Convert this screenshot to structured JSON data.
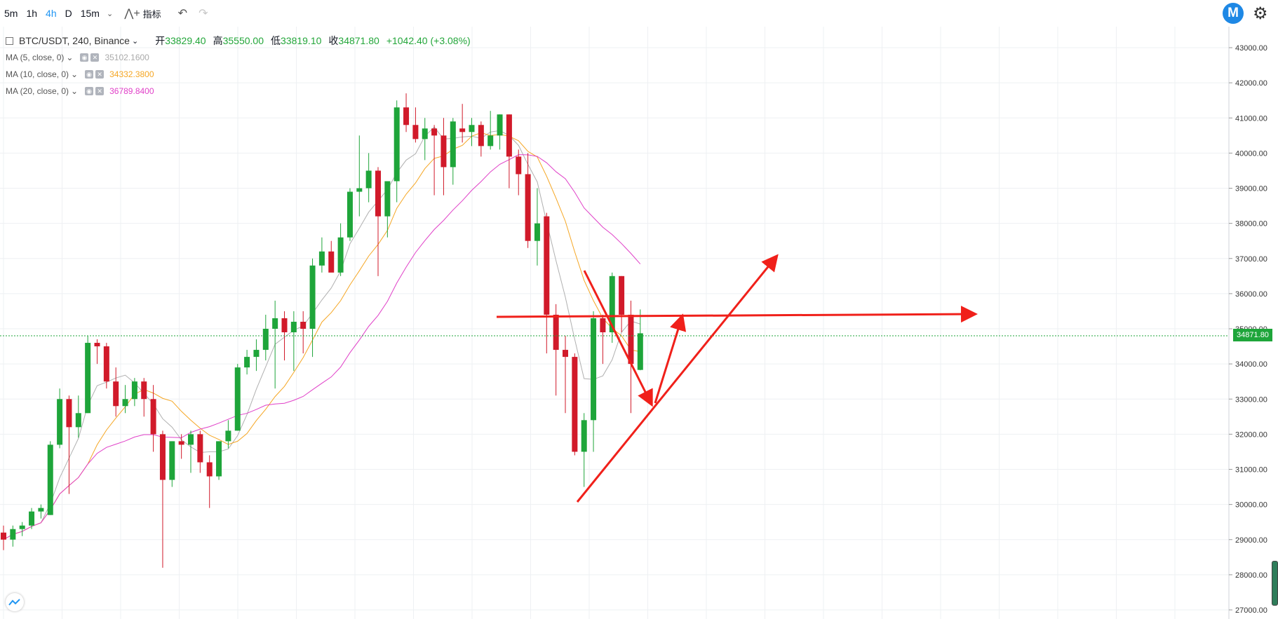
{
  "toolbar": {
    "timeframes": [
      "5m",
      "1h",
      "4h",
      "D",
      "15m"
    ],
    "active": "4h",
    "indicators_label": "指标"
  },
  "legend": {
    "symbol": "BTC/USDT, 240, Binance",
    "open_label": "开",
    "open": "33829.40",
    "high_label": "高",
    "high": "35550.00",
    "low_label": "低",
    "low": "33819.10",
    "close_label": "收",
    "close": "34871.80",
    "change": "+1042.40 (+3.08%)"
  },
  "ma": [
    {
      "label": "MA (5, close, 0)",
      "value": "35102.1600",
      "color": "#b0b0b0"
    },
    {
      "label": "MA (10, close, 0)",
      "value": "34332.3800",
      "color": "#f5a623"
    },
    {
      "label": "MA (20, close, 0)",
      "value": "36789.8400",
      "color": "#e040c8"
    }
  ],
  "colors": {
    "up": "#1ea53a",
    "down": "#d11a2a",
    "accent": "#2196f3",
    "annotation": "#f0201a"
  },
  "current_price": "34871.80",
  "chart_data": {
    "type": "candlestick",
    "price_axis": {
      "min": 27000,
      "max": 43000,
      "ticks": [
        "27000.00",
        "28000.00",
        "29000.00",
        "30000.00",
        "31000.00",
        "32000.00",
        "33000.00",
        "34000.00",
        "35000.00",
        "36000.00",
        "37000.00",
        "38000.00",
        "39000.00",
        "40000.00",
        "41000.00",
        "42000.00",
        "43000.00"
      ]
    },
    "candles": [
      [
        29200,
        29400,
        28700,
        29000
      ],
      [
        29000,
        29400,
        28800,
        29300
      ],
      [
        29300,
        29500,
        29100,
        29400
      ],
      [
        29400,
        29900,
        29300,
        29800
      ],
      [
        29800,
        30000,
        29600,
        29900
      ],
      [
        29700,
        31800,
        29700,
        31700
      ],
      [
        31700,
        33300,
        31600,
        33000
      ],
      [
        33000,
        33100,
        30300,
        32200
      ],
      [
        32200,
        33100,
        31900,
        32600
      ],
      [
        32600,
        34800,
        32600,
        34600
      ],
      [
        34600,
        34700,
        34000,
        34500
      ],
      [
        34500,
        34600,
        33300,
        33500
      ],
      [
        33500,
        33900,
        32500,
        32800
      ],
      [
        32800,
        33400,
        32600,
        33000
      ],
      [
        33000,
        33600,
        32800,
        33500
      ],
      [
        33500,
        33600,
        32500,
        33000
      ],
      [
        33000,
        33400,
        31500,
        32000
      ],
      [
        32000,
        32100,
        28200,
        30700
      ],
      [
        30700,
        31800,
        30500,
        31800
      ],
      [
        31800,
        32000,
        31300,
        31700
      ],
      [
        31700,
        32100,
        30900,
        32000
      ],
      [
        32000,
        32100,
        30900,
        31200
      ],
      [
        31200,
        31400,
        29900,
        30800
      ],
      [
        30800,
        31800,
        30700,
        31800
      ],
      [
        31800,
        32400,
        31600,
        32100
      ],
      [
        32100,
        34000,
        32100,
        33900
      ],
      [
        33900,
        34400,
        33700,
        34200
      ],
      [
        34200,
        34700,
        33800,
        34400
      ],
      [
        34400,
        35400,
        34100,
        35000
      ],
      [
        35000,
        35800,
        33300,
        35300
      ],
      [
        35300,
        35500,
        34100,
        34900
      ],
      [
        34900,
        35500,
        33800,
        35200
      ],
      [
        35200,
        35500,
        34300,
        35000
      ],
      [
        35000,
        37000,
        34200,
        36800
      ],
      [
        36800,
        37600,
        36600,
        37200
      ],
      [
        37200,
        37500,
        36700,
        36600
      ],
      [
        36600,
        38000,
        36500,
        37600
      ],
      [
        37600,
        39000,
        37500,
        38900
      ],
      [
        38900,
        40500,
        38200,
        39000
      ],
      [
        39000,
        40000,
        38600,
        39500
      ],
      [
        39500,
        39600,
        36500,
        38200
      ],
      [
        38200,
        39100,
        37600,
        39200
      ],
      [
        39200,
        41500,
        38600,
        41300
      ],
      [
        41300,
        41700,
        40600,
        40800
      ],
      [
        40800,
        41300,
        40300,
        40400
      ],
      [
        40400,
        41000,
        39800,
        40700
      ],
      [
        40700,
        40800,
        38800,
        40500
      ],
      [
        40500,
        41000,
        38800,
        39600
      ],
      [
        39600,
        41000,
        39100,
        40900
      ],
      [
        40700,
        41400,
        40300,
        40600
      ],
      [
        40600,
        41000,
        40200,
        40800
      ],
      [
        40800,
        40900,
        39900,
        40200
      ],
      [
        40200,
        41200,
        40100,
        40500
      ],
      [
        40500,
        41100,
        40100,
        41100
      ],
      [
        41100,
        41100,
        39000,
        39900
      ],
      [
        39900,
        40100,
        38800,
        39400
      ],
      [
        39400,
        40000,
        37300,
        37500
      ],
      [
        37500,
        39000,
        36800,
        38000
      ],
      [
        38200,
        38300,
        34300,
        35400
      ],
      [
        35400,
        35700,
        33100,
        34400
      ],
      [
        34400,
        34800,
        32600,
        34200
      ],
      [
        34200,
        34300,
        31400,
        31500
      ],
      [
        31500,
        32600,
        30500,
        32400
      ],
      [
        32400,
        35500,
        31500,
        35300
      ],
      [
        35300,
        35400,
        34000,
        34900
      ],
      [
        34900,
        36600,
        34600,
        36500
      ],
      [
        36500,
        36500,
        34900,
        35400
      ],
      [
        35400,
        35800,
        32600,
        34000
      ],
      [
        33829.4,
        35550,
        33819.1,
        34871.8
      ]
    ]
  }
}
